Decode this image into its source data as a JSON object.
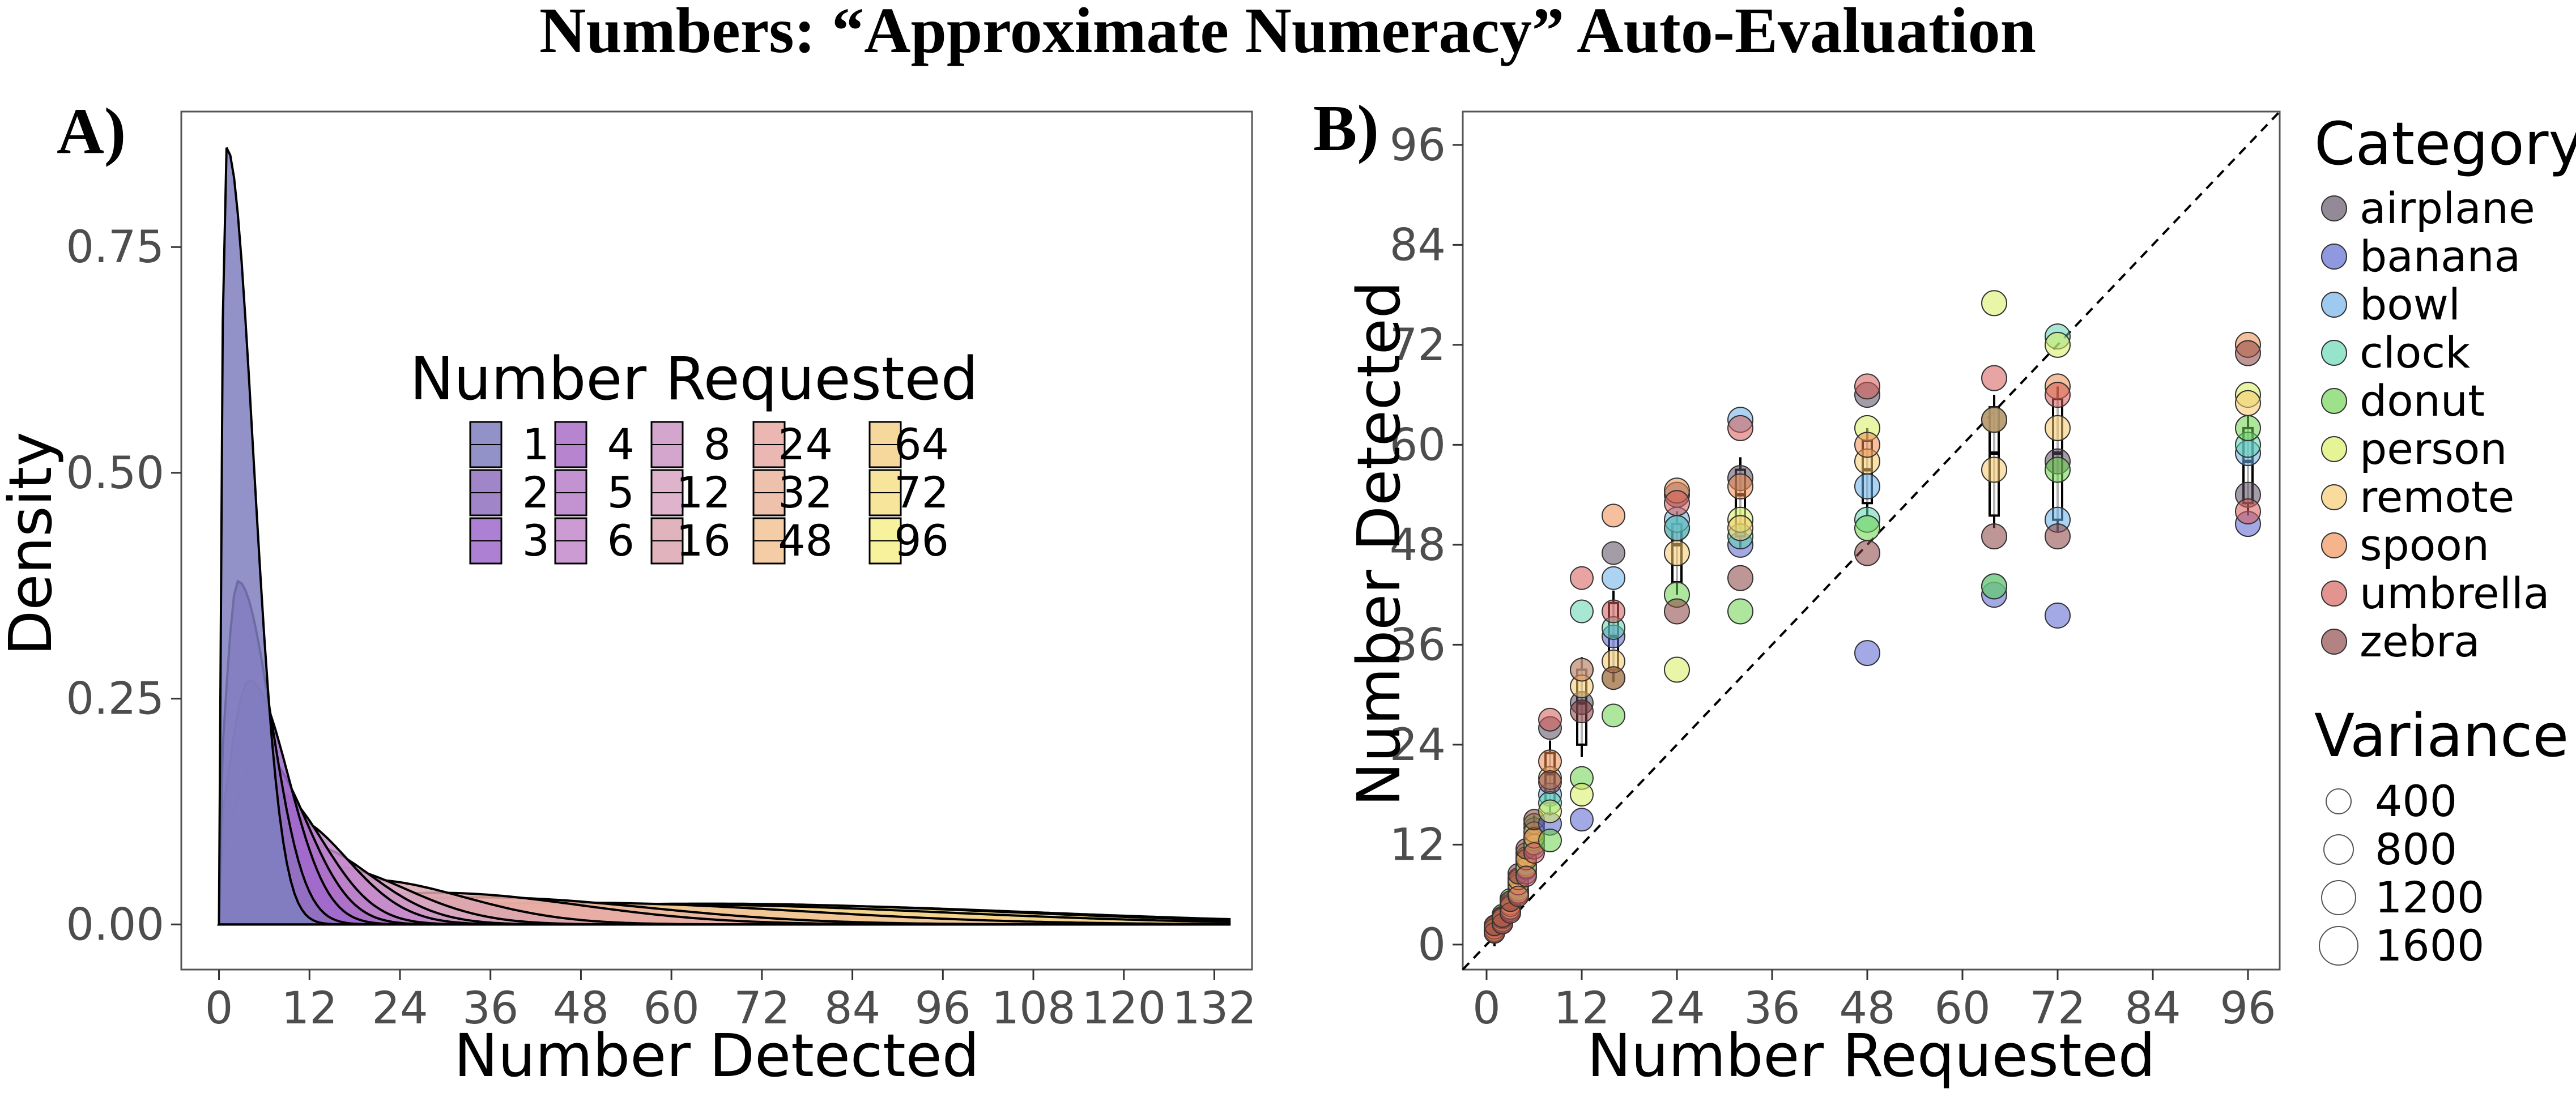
{
  "title": "Numbers: “Approximate Numeracy” Auto-Evaluation",
  "colors": {
    "requested": [
      "#7f7fc0",
      "#9070c0",
      "#a06acb",
      "#aa6fc7",
      "#b87fc9",
      "#c48acb",
      "#cc96c6",
      "#d8a6c2",
      "#dca6b0",
      "#e6aaa6",
      "#ebb69f",
      "#f2c496",
      "#f4d18c",
      "#f5e089",
      "#f6f08a"
    ],
    "categories": [
      "#5a4a5f",
      "#5563d0",
      "#6aaee8",
      "#5ed6b0",
      "#69d24b",
      "#d8ee5e",
      "#f6c86a",
      "#ef8c4e",
      "#d65a55",
      "#8a4040"
    ]
  },
  "chart_data": [
    {
      "panel": "A)",
      "type": "area",
      "xlabel": "Number Detected",
      "ylabel": "Density",
      "xlim": [
        -5,
        137
      ],
      "ylim": [
        -0.05,
        0.9
      ],
      "xticks": [
        0,
        12,
        24,
        36,
        48,
        60,
        72,
        84,
        96,
        108,
        120,
        132
      ],
      "yticks": [
        0.0,
        0.25,
        0.5,
        0.75
      ],
      "ytick_labels": [
        "0.00",
        "0.25",
        "0.50",
        "0.75"
      ],
      "legend": {
        "title": "Number Requested",
        "entries": [
          "1",
          "2",
          "3",
          "4",
          "5",
          "6",
          "8",
          "12",
          "16",
          "24",
          "32",
          "48",
          "64",
          "72",
          "96"
        ]
      },
      "series": [
        {
          "name": "1",
          "peak_x": 1,
          "peak_y": 0.86
        },
        {
          "name": "2",
          "peak_x": 2.5,
          "peak_y": 0.38
        },
        {
          "name": "3",
          "peak_x": 4,
          "peak_y": 0.27
        },
        {
          "name": "4",
          "peak_x": 5.5,
          "peak_y": 0.19
        },
        {
          "name": "5",
          "peak_x": 7,
          "peak_y": 0.15
        },
        {
          "name": "6",
          "peak_x": 9,
          "peak_y": 0.12
        },
        {
          "name": "8",
          "peak_x": 11,
          "peak_y": 0.09
        },
        {
          "name": "12",
          "peak_x": 14,
          "peak_y": 0.065
        },
        {
          "name": "16",
          "peak_x": 19,
          "peak_y": 0.05
        },
        {
          "name": "24",
          "peak_x": 29,
          "peak_y": 0.035
        },
        {
          "name": "32",
          "peak_x": 35,
          "peak_y": 0.03
        },
        {
          "name": "48",
          "peak_x": 48,
          "peak_y": 0.024
        },
        {
          "name": "64",
          "peak_x": 60,
          "peak_y": 0.022
        },
        {
          "name": "72",
          "peak_x": 65,
          "peak_y": 0.023
        },
        {
          "name": "96",
          "peak_x": 68,
          "peak_y": 0.022
        }
      ]
    },
    {
      "panel": "B)",
      "type": "scatter",
      "xlabel": "Number Requested",
      "ylabel": "Number Detected",
      "xlim": [
        -3,
        100
      ],
      "ylim": [
        -3,
        100
      ],
      "xticks": [
        0,
        12,
        24,
        36,
        48,
        60,
        72,
        84,
        96
      ],
      "yticks": [
        0,
        12,
        24,
        36,
        48,
        60,
        72,
        84,
        96
      ],
      "reference_line": "y = x (dashed)",
      "legend_category": {
        "title": "Category",
        "entries": [
          "airplane",
          "banana",
          "bowl",
          "clock",
          "donut",
          "person",
          "remote",
          "spoon",
          "umbrella",
          "zebra"
        ]
      },
      "legend_variance": {
        "title": "Variance",
        "entries": [
          400,
          800,
          1200,
          1600
        ]
      },
      "requested": [
        1,
        2,
        3,
        4,
        5,
        6,
        8,
        12,
        16,
        24,
        32,
        48,
        64,
        72,
        96
      ],
      "boxes": [
        {
          "x": 1,
          "q1": 1.3,
          "q3": 2.2,
          "median": 1.8
        },
        {
          "x": 2,
          "q1": 2.6,
          "q3": 3.6,
          "median": 3.0
        },
        {
          "x": 3,
          "q1": 3.8,
          "q3": 5.5,
          "median": 4.6
        },
        {
          "x": 4,
          "q1": 5.8,
          "q3": 8.0,
          "median": 7.0
        },
        {
          "x": 5,
          "q1": 8.5,
          "q3": 10.5,
          "median": 9.5
        },
        {
          "x": 6,
          "q1": 11.0,
          "q3": 14.0,
          "median": 12.5
        },
        {
          "x": 8,
          "q1": 17.0,
          "q3": 23.0,
          "median": 20.5
        },
        {
          "x": 12,
          "q1": 24.0,
          "q3": 33.0,
          "median": 29.0
        },
        {
          "x": 16,
          "q1": 33.0,
          "q3": 41.0,
          "median": 37.0
        },
        {
          "x": 24,
          "q1": 43.5,
          "q3": 50.5,
          "median": 48.0
        },
        {
          "x": 32,
          "q1": 49.0,
          "q3": 57.0,
          "median": 54.0
        },
        {
          "x": 48,
          "q1": 53.0,
          "q3": 60.5,
          "median": 57.0
        },
        {
          "x": 64,
          "q1": 51.5,
          "q3": 64.5,
          "median": 59.0
        },
        {
          "x": 72,
          "q1": 51.0,
          "q3": 65.5,
          "median": 59.0
        },
        {
          "x": 96,
          "q1": 53.0,
          "q3": 62.0,
          "median": 58.0
        }
      ],
      "points": [
        {
          "x": 1,
          "values": [
            1.5,
            1.8,
            2.0,
            1.7,
            2.1,
            1.6,
            2.2,
            1.9,
            1.4,
            2.3
          ]
        },
        {
          "x": 2,
          "values": [
            3.0,
            2.6,
            3.4,
            2.9,
            3.6,
            2.8,
            3.2,
            3.1,
            2.5,
            3.3
          ]
        },
        {
          "x": 3,
          "values": [
            4.5,
            4.0,
            5.0,
            4.2,
            5.5,
            4.3,
            4.8,
            4.6,
            3.8,
            5.2
          ]
        },
        {
          "x": 4,
          "values": [
            7.0,
            6.0,
            8.0,
            6.5,
            7.5,
            6.2,
            7.2,
            7.8,
            5.8,
            8.5
          ]
        },
        {
          "x": 5,
          "values": [
            9.0,
            8.5,
            10.0,
            9.5,
            11.0,
            9.2,
            10.5,
            10.2,
            8.2,
            11.5
          ]
        },
        {
          "x": 6,
          "values": [
            13.0,
            11.5,
            14.0,
            12.5,
            14.5,
            12.0,
            13.5,
            12.8,
            11.0,
            15.0
          ]
        },
        {
          "x": 8,
          "values": [
            26.0,
            14.5,
            18.0,
            17.0,
            12.5,
            16.0,
            20.0,
            22.0,
            27.0,
            19.5
          ]
        },
        {
          "x": 12,
          "values": [
            29.0,
            15.0,
            33.0,
            40.0,
            20.0,
            18.0,
            31.0,
            33.0,
            44.0,
            28.0
          ]
        },
        {
          "x": 16,
          "values": [
            47.0,
            37.0,
            44.0,
            38.0,
            27.5,
            32.0,
            34.0,
            51.5,
            40.0,
            32.0
          ]
        },
        {
          "x": 24,
          "values": [
            54.0,
            50.0,
            51.0,
            50.0,
            42.0,
            33.0,
            47.0,
            54.5,
            53.0,
            40.0
          ]
        },
        {
          "x": 32,
          "values": [
            56.0,
            48.0,
            63.0,
            49.0,
            40.0,
            51.0,
            50.0,
            55.0,
            62.0,
            44.0
          ]
        },
        {
          "x": 48,
          "values": [
            66.0,
            35.0,
            55.0,
            51.0,
            50.0,
            62.0,
            58.0,
            60.0,
            67.0,
            47.0
          ]
        },
        {
          "x": 64,
          "values": [
            63.0,
            42.0,
            43.0,
            63.0,
            43.0,
            77.0,
            57.0,
            63.0,
            68.0,
            49.0
          ]
        },
        {
          "x": 72,
          "values": [
            58.0,
            39.5,
            51.0,
            73.0,
            57.0,
            72.0,
            62.0,
            67.0,
            66.0,
            49.0
          ]
        },
        {
          "x": 96,
          "values": [
            54.0,
            50.5,
            59.0,
            60.0,
            62.0,
            66.0,
            65.0,
            72.0,
            52.0,
            71.0
          ]
        }
      ]
    }
  ]
}
